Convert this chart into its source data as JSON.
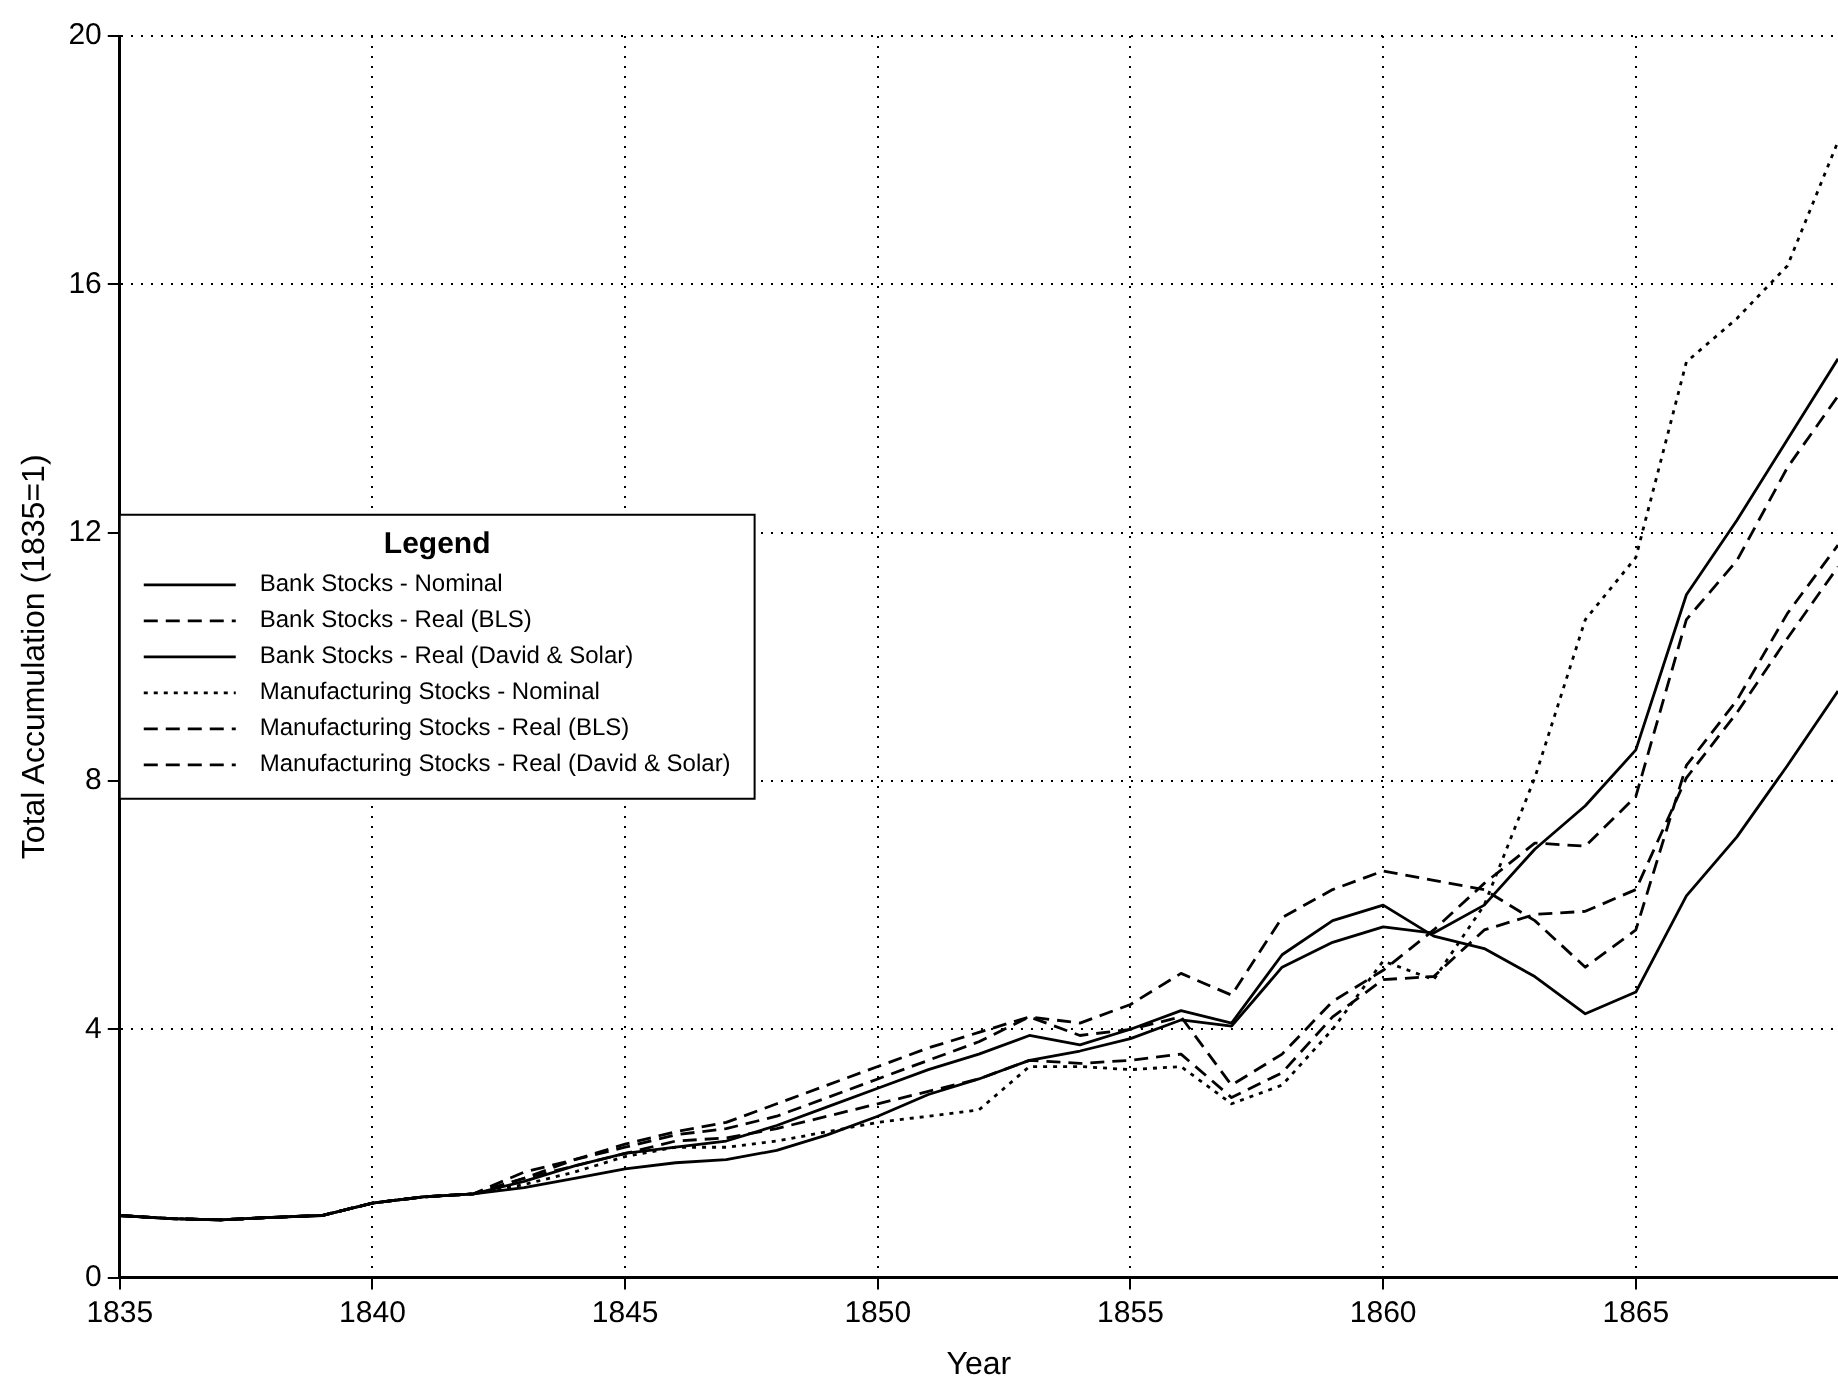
{
  "chart_data": {
    "type": "line",
    "xlabel": "Year",
    "ylabel": "Total Accumulation (1835=1)",
    "x": [
      1835,
      1836,
      1837,
      1838,
      1839,
      1840,
      1841,
      1842,
      1843,
      1844,
      1845,
      1846,
      1847,
      1848,
      1849,
      1850,
      1851,
      1852,
      1853,
      1854,
      1855,
      1856,
      1857,
      1858,
      1859,
      1860,
      1861,
      1862,
      1863,
      1864,
      1865,
      1866,
      1867,
      1868,
      1869
    ],
    "xlim": [
      1835,
      1869
    ],
    "xticks": [
      1835,
      1840,
      1845,
      1850,
      1855,
      1860,
      1865
    ],
    "ylim": [
      0,
      20
    ],
    "yticks": [
      0,
      4,
      8,
      12,
      16,
      20
    ],
    "grid": true,
    "legend": "center left",
    "legend_title": "Legend",
    "marker": "none",
    "series": [
      {
        "name": "Bank Stocks - Nominal",
        "color": "#000000",
        "line_style": "solid",
        "values": [
          1.0,
          0.95,
          0.93,
          0.97,
          1.0,
          1.2,
          1.3,
          1.35,
          1.55,
          1.8,
          2.0,
          2.1,
          2.2,
          2.45,
          2.75,
          3.05,
          3.35,
          3.6,
          3.9,
          3.75,
          4.0,
          4.3,
          4.1,
          5.2,
          5.75,
          6.0,
          5.5,
          5.3,
          4.85,
          4.25,
          4.6,
          6.15,
          7.1,
          8.25,
          9.45
        ]
      },
      {
        "name": "Bank Stocks - Real (BLS)",
        "color": "#000000",
        "line_style": "dashed",
        "values": [
          1.0,
          0.95,
          0.93,
          0.97,
          1.0,
          1.2,
          1.3,
          1.35,
          1.6,
          1.9,
          2.15,
          2.35,
          2.5,
          2.8,
          3.1,
          3.4,
          3.7,
          3.95,
          4.2,
          4.1,
          4.4,
          4.9,
          4.55,
          5.8,
          6.25,
          6.55,
          6.4,
          6.25,
          5.75,
          5.0,
          5.6,
          8.25,
          9.3,
          10.7,
          11.8
        ]
      },
      {
        "name": "Bank Stocks - Real (David & Solar)",
        "color": "#000000",
        "line_style": "solid",
        "values": [
          1.0,
          0.95,
          0.93,
          0.97,
          1.0,
          1.2,
          1.3,
          1.35,
          1.45,
          1.6,
          1.75,
          1.85,
          1.9,
          2.05,
          2.3,
          2.6,
          2.95,
          3.2,
          3.5,
          3.65,
          3.85,
          4.15,
          4.05,
          5.0,
          5.4,
          5.65,
          5.55,
          6.0,
          6.9,
          7.6,
          8.5,
          11.0,
          12.2,
          13.5,
          14.8
        ]
      },
      {
        "name": "Manufacturing Stocks - Nominal",
        "color": "#000000",
        "line_style": "dotted",
        "values": [
          1.0,
          0.95,
          0.93,
          0.97,
          1.0,
          1.2,
          1.3,
          1.35,
          1.5,
          1.7,
          1.95,
          2.1,
          2.1,
          2.2,
          2.35,
          2.5,
          2.6,
          2.7,
          3.4,
          3.4,
          3.35,
          3.4,
          2.8,
          3.1,
          4.0,
          5.1,
          4.8,
          6.0,
          8.05,
          10.6,
          11.6,
          14.75,
          15.45,
          16.3,
          18.3
        ]
      },
      {
        "name": "Manufacturing Stocks - Real (BLS)",
        "color": "#000000",
        "line_style": "dashed",
        "values": [
          1.0,
          0.95,
          0.93,
          0.97,
          1.0,
          1.2,
          1.3,
          1.35,
          1.7,
          1.9,
          2.1,
          2.3,
          2.4,
          2.6,
          2.9,
          3.2,
          3.5,
          3.8,
          4.2,
          3.9,
          4.0,
          4.2,
          3.1,
          3.6,
          4.45,
          4.95,
          5.6,
          6.35,
          7.0,
          6.95,
          7.75,
          10.6,
          11.55,
          13.05,
          14.2
        ]
      },
      {
        "name": "Manufacturing Stocks - Real (David & Solar)",
        "color": "#000000",
        "line_style": "dashed",
        "values": [
          1.0,
          0.95,
          0.93,
          0.97,
          1.0,
          1.2,
          1.3,
          1.35,
          1.6,
          1.8,
          2.0,
          2.2,
          2.25,
          2.4,
          2.6,
          2.8,
          3.0,
          3.2,
          3.5,
          3.45,
          3.5,
          3.6,
          2.9,
          3.3,
          4.2,
          4.8,
          4.85,
          5.6,
          5.85,
          5.9,
          6.25,
          8.05,
          9.1,
          10.3,
          11.45
        ]
      }
    ]
  }
}
